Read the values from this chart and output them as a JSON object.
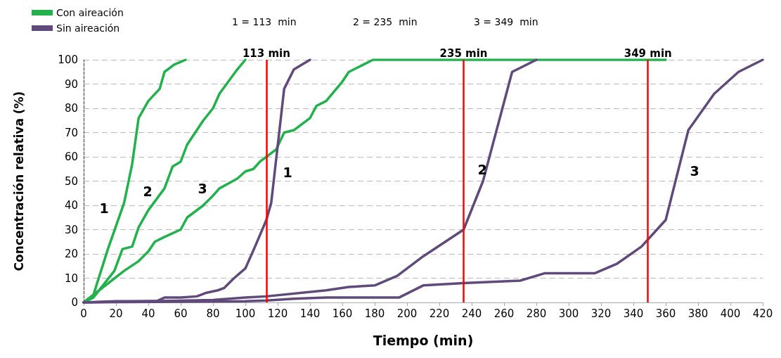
{
  "chart_data": {
    "type": "line",
    "xlabel": "Tiempo (min)",
    "ylabel": "Concentración relativa (%)",
    "xlim": [
      0,
      420
    ],
    "xticks": [
      0,
      20,
      40,
      60,
      80,
      100,
      120,
      140,
      160,
      180,
      200,
      220,
      240,
      260,
      280,
      300,
      320,
      340,
      360,
      380,
      400,
      420
    ],
    "ylim": [
      0,
      100
    ],
    "yticks": [
      0,
      10,
      20,
      30,
      40,
      50,
      60,
      70,
      80,
      90,
      100
    ],
    "grid": "y",
    "legend": "top left",
    "marker": "none",
    "line_style": "solid",
    "series": [
      {
        "name": "Con aireación",
        "color": "#22b14c",
        "x": [
          0,
          6,
          15,
          25,
          30,
          34,
          40,
          47,
          50,
          56,
          63
        ],
        "values": [
          0,
          3,
          22,
          41,
          57,
          76,
          83,
          88,
          95,
          98,
          100
        ]
      },
      {
        "color": "#22b14c",
        "x": [
          0,
          6,
          19,
          24,
          30,
          34,
          40,
          50,
          55,
          60,
          64,
          74,
          80,
          84,
          95,
          100
        ],
        "values": [
          0,
          2,
          13,
          22,
          23,
          31,
          38,
          47,
          56,
          58,
          65,
          75,
          80,
          86,
          96,
          100
        ]
      },
      {
        "color": "#22b14c",
        "x": [
          0,
          25,
          34,
          40,
          44,
          50,
          60,
          64,
          74,
          80,
          84,
          95,
          100,
          105,
          109,
          113,
          119,
          124,
          130,
          140,
          144,
          150,
          160,
          164,
          173,
          179,
          360
        ],
        "values": [
          0,
          13,
          17,
          21,
          25,
          27,
          30,
          35,
          40,
          44,
          47,
          51,
          54,
          55,
          58,
          60,
          63,
          70,
          71,
          76,
          81,
          83,
          91,
          95,
          98,
          100,
          100
        ]
      },
      {
        "name": "Sin aireación",
        "color": "#604a7b",
        "x": [
          0,
          20,
          45,
          50,
          60,
          70,
          76,
          83,
          87,
          93,
          100,
          106,
          113,
          116,
          124,
          130,
          140
        ],
        "values": [
          0,
          0.5,
          0.5,
          2,
          2,
          2.5,
          4,
          5,
          6,
          10,
          14,
          23,
          34,
          41,
          88,
          96,
          100
        ]
      },
      {
        "color": "#604a7b",
        "x": [
          0,
          40,
          80,
          100,
          113,
          150,
          164,
          180,
          194,
          210,
          235,
          247,
          265,
          280
        ],
        "values": [
          0,
          0.5,
          1,
          2,
          2.5,
          5,
          6.4,
          7,
          11,
          19,
          30,
          50,
          95,
          100
        ]
      },
      {
        "color": "#604a7b",
        "x": [
          0,
          100,
          113,
          130,
          150,
          195,
          210,
          235,
          270,
          285,
          316,
          330,
          345,
          360,
          374,
          390,
          405,
          420
        ],
        "values": [
          0,
          0.5,
          0.8,
          1.5,
          2,
          2,
          7,
          8,
          9,
          12,
          12,
          16,
          23,
          34,
          71,
          86,
          95,
          100
        ]
      }
    ],
    "ref_lines": [
      {
        "axis": "x",
        "value": 113,
        "label": "113 min",
        "color": "#ff0000"
      },
      {
        "axis": "x",
        "value": 235,
        "label": "235 min",
        "color": "#ff0000"
      },
      {
        "axis": "x",
        "value": 349,
        "label": "349 min",
        "color": "#ff0000"
      }
    ],
    "annotations": [
      "1 = 113  min",
      "2 = 235  min",
      "3 = 349  min",
      "1",
      "2",
      "3",
      "1",
      "2",
      "3"
    ]
  }
}
